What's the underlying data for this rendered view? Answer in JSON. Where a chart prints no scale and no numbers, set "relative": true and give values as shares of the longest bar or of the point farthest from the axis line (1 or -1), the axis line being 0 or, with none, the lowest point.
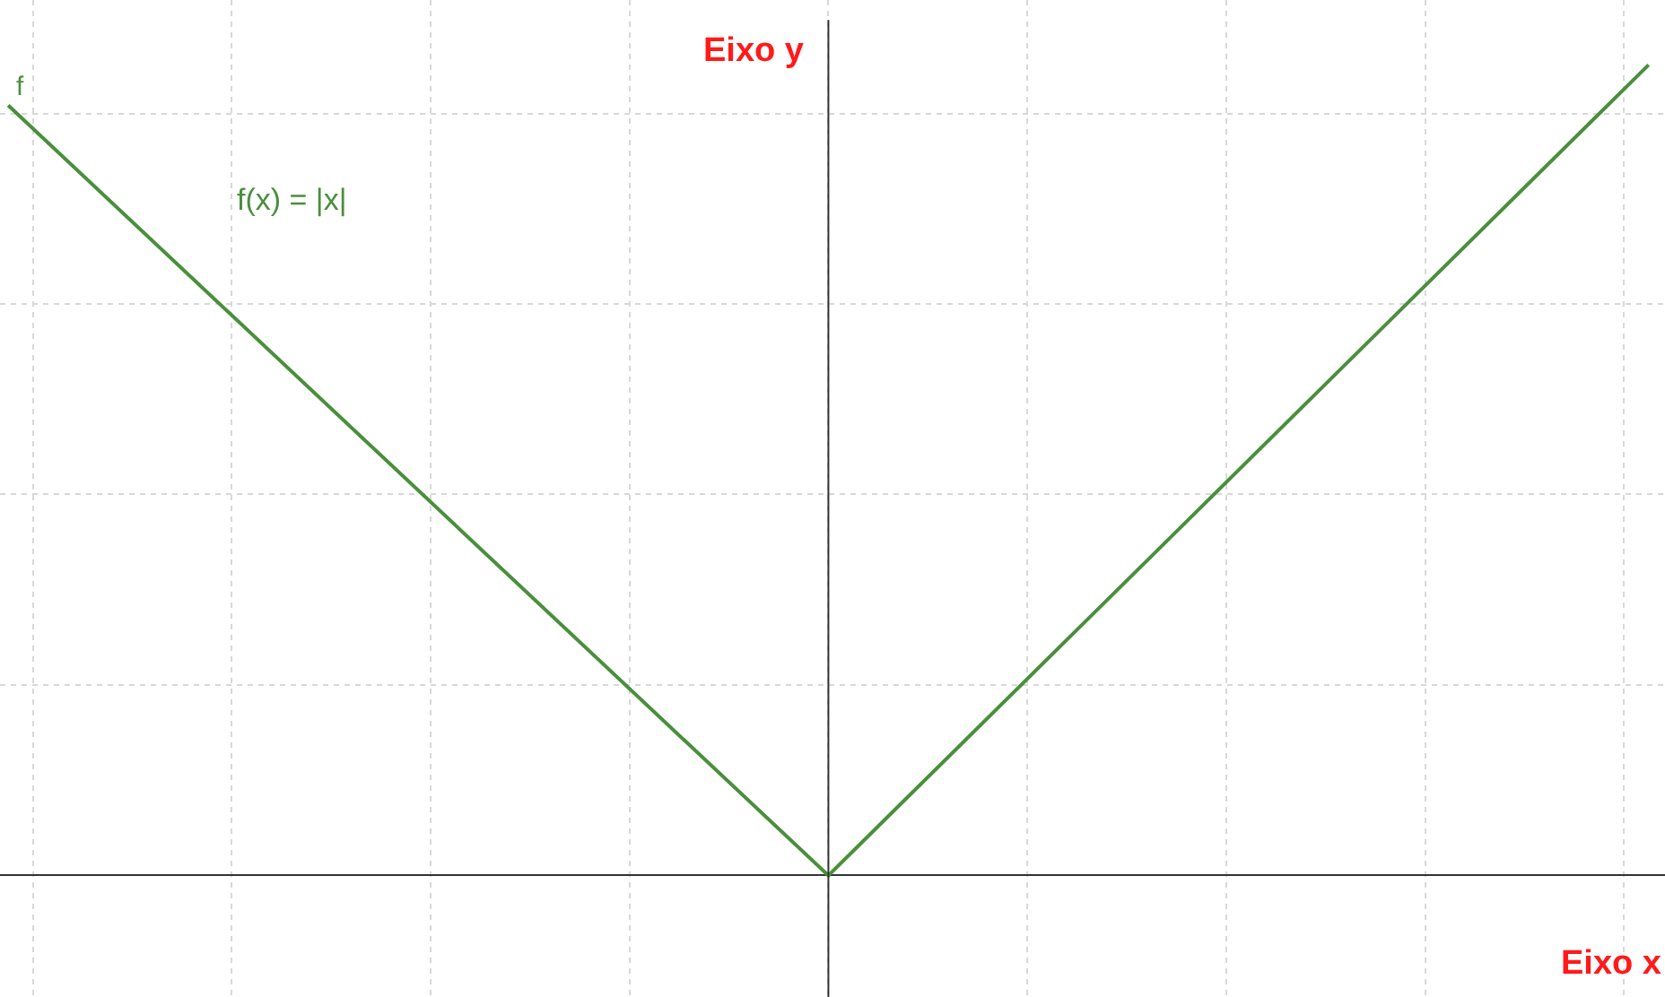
{
  "chart_data": {
    "type": "line",
    "relative": true,
    "xlabel": "Eixo x",
    "ylabel": "Eixo y",
    "categories": [
      null,
      null,
      null
    ],
    "series": [
      {
        "name": "f",
        "color": "#4a8f3c",
        "values": [
          0.95,
          0,
          1
        ]
      }
    ],
    "annotations": [
      "f(x) = |x|"
    ],
    "grid": true,
    "marker": "none",
    "line_style": "solid",
    "legend": false
  }
}
